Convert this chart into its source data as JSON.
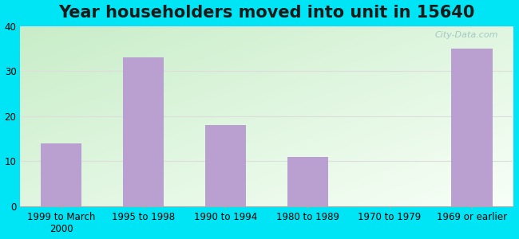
{
  "title": "Year householders moved into unit in 15640",
  "categories": [
    "1999 to March\n2000",
    "1995 to 1998",
    "1990 to 1994",
    "1980 to 1989",
    "1970 to 1979",
    "1969 or earlier"
  ],
  "values": [
    14,
    33,
    18,
    11,
    0,
    35
  ],
  "bar_color": "#b9a0d0",
  "ylim": [
    0,
    40
  ],
  "yticks": [
    0,
    10,
    20,
    30,
    40
  ],
  "background_outer": "#00e5f5",
  "background_inner_topleft": "#c8edc8",
  "background_inner_bottomright": "#f8fff8",
  "grid_color": "#dddddd",
  "title_fontsize": 15,
  "tick_fontsize": 8.5,
  "watermark": "City-Data.com"
}
